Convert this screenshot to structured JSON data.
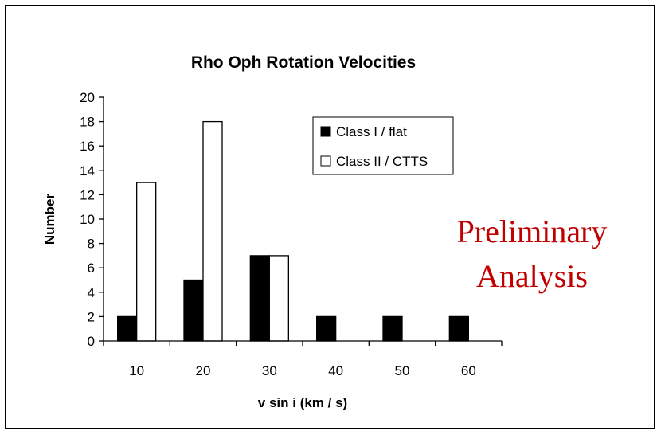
{
  "chart_data": {
    "type": "bar",
    "title": "Rho Oph Rotation Velocities",
    "xlabel": "v sin i (km / s)",
    "ylabel": "Number",
    "categories": [
      "10",
      "20",
      "30",
      "40",
      "50",
      "60"
    ],
    "series": [
      {
        "name": "Class I / flat",
        "values": [
          2,
          5,
          7,
          2,
          2,
          2
        ],
        "color": "#000000"
      },
      {
        "name": "Class II / CTTS",
        "values": [
          13,
          18,
          7,
          0,
          0,
          0
        ],
        "color": "#ffffff"
      }
    ],
    "ylim": [
      0,
      20
    ],
    "yticks": [
      0,
      2,
      4,
      6,
      8,
      10,
      12,
      14,
      16,
      18,
      20
    ],
    "grid": false,
    "legend_position": "top-right",
    "annotation": {
      "lines": [
        "Preliminary",
        "Analysis"
      ],
      "color": "#c00000"
    }
  }
}
